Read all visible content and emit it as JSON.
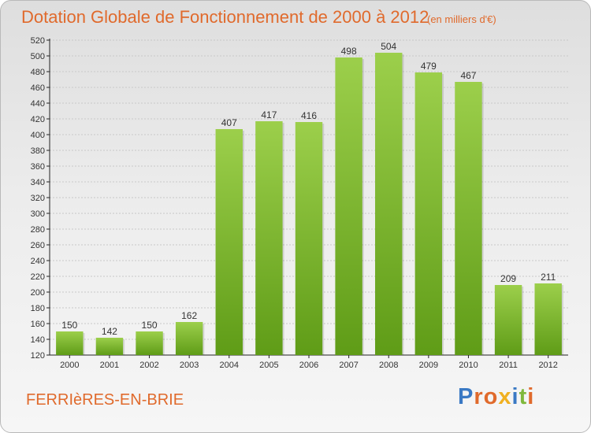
{
  "header": {
    "title": "Dotation Globale de Fonctionnement de 2000 à 2012",
    "subtitle": "(en milliers d'€)"
  },
  "footer": {
    "commune": "FERRIèRES-EN-BRIE",
    "brand": "Proxiti",
    "brand_colors": [
      "#3a79c4",
      "#e06a2c",
      "#e06a2c",
      "#f0b020",
      "#3a79c4",
      "#7fb83c",
      "#e06a2c"
    ]
  },
  "colors": {
    "bar_top": "#9ccf4b",
    "bar_bottom": "#5f9c17",
    "accent": "#e06a2c",
    "grid": "#c8c8c8",
    "axis": "#222222"
  },
  "chart_data": {
    "type": "bar",
    "categories": [
      "2000",
      "2001",
      "2002",
      "2003",
      "2004",
      "2005",
      "2006",
      "2007",
      "2008",
      "2009",
      "2010",
      "2011",
      "2012"
    ],
    "values": [
      150,
      142,
      150,
      162,
      407,
      417,
      416,
      498,
      504,
      479,
      467,
      209,
      211
    ],
    "ylim": [
      120,
      520
    ],
    "ytick_step": 20,
    "grid": true,
    "data_labels": true
  }
}
